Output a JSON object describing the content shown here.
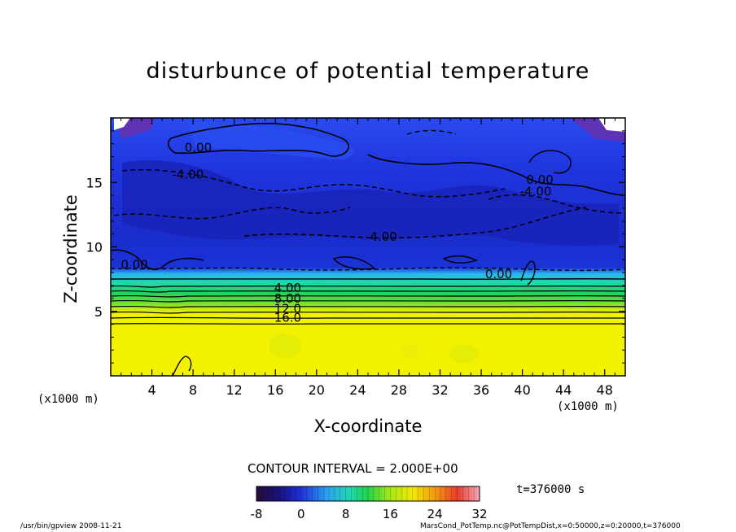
{
  "chart_data": {
    "type": "heatmap",
    "title": "disturbunce of potential temperature",
    "xlabel": "X-coordinate",
    "ylabel": "Z-coordinate",
    "x_unit": "(x1000 m)",
    "xlim": [
      0,
      50
    ],
    "ylim": [
      0,
      20
    ],
    "x_ticks": [
      "4",
      "8",
      "12",
      "16",
      "20",
      "24",
      "28",
      "32",
      "36",
      "40",
      "44",
      "48"
    ],
    "y_ticks": [
      "5",
      "10",
      "15"
    ],
    "contour_interval_text": "CONTOUR INTERVAL = 2.000E+00",
    "contour_labels": [
      {
        "text": "0.00",
        "x": 8.5,
        "z": 17.7
      },
      {
        "text": "-4.00",
        "x": 7.5,
        "z": 15.6
      },
      {
        "text": "0.00",
        "x": 41.7,
        "z": 15.2
      },
      {
        "text": "-4.00",
        "x": 41.3,
        "z": 14.3
      },
      {
        "text": "-4.00",
        "x": 26.3,
        "z": 10.8
      },
      {
        "text": "0.00",
        "x": 2.3,
        "z": 8.6
      },
      {
        "text": "0.00",
        "x": 37.7,
        "z": 7.9
      },
      {
        "text": "4.00",
        "x": 17.2,
        "z": 6.8
      },
      {
        "text": "8.00",
        "x": 17.2,
        "z": 6.0
      },
      {
        "text": "12.0",
        "x": 17.2,
        "z": 5.2
      },
      {
        "text": "16.0",
        "x": 17.2,
        "z": 4.5
      }
    ],
    "field_summary": [
      {
        "z_range": [
          0,
          4
        ],
        "value": 19,
        "description": "uniform"
      },
      {
        "z_range": [
          4,
          8
        ],
        "value_range": [
          16,
          0
        ],
        "description": "strong vertical gradient"
      },
      {
        "z_range": [
          8,
          20
        ],
        "value_range": [
          -6,
          0
        ],
        "description": "weak negative disturbance"
      }
    ],
    "colorbar": {
      "range": [
        -8,
        32
      ],
      "tick_labels": [
        "-8",
        "0",
        "8",
        "16",
        "24",
        "32"
      ],
      "colormap": "rainbow"
    },
    "time_label": "t=376000 s"
  },
  "footer": {
    "left": "/usr/bin/gpview   2008-11-21",
    "right": "MarsCond_PotTemp.nc@PotTempDist,x=0:50000,z=0:20000,t=376000"
  },
  "colors": {
    "upper_blue": "#1e3ee8",
    "deep_blue": "#1a28c8",
    "yellow": "#f2f200",
    "green": "#29d35a"
  }
}
